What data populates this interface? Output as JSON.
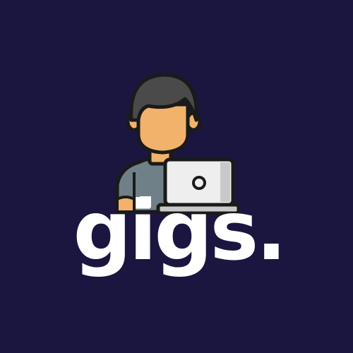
{
  "brand": {
    "wordmark": "gigs.",
    "background_color": "#1a1640",
    "text_color": "#ffffff"
  },
  "illustration": {
    "icon": "person-with-laptop-icon",
    "colors": {
      "outline": "#1a1a1a",
      "hair": "#4a4a4a",
      "skin": "#f2b26b",
      "shirt": "#6f8089",
      "laptop": "#eeeeee",
      "laptop_shade": "#c9c9c9"
    }
  }
}
